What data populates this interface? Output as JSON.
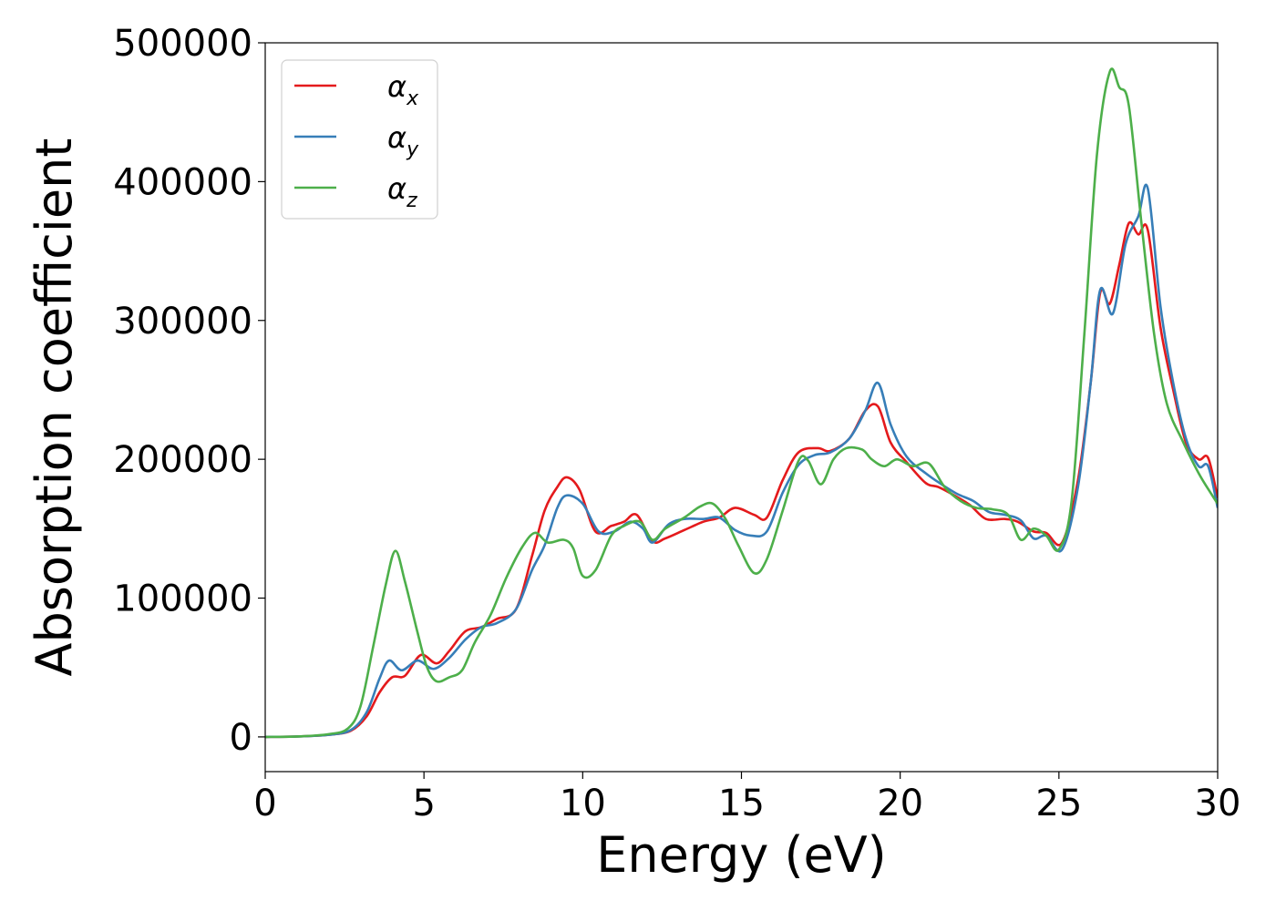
{
  "chart_data": {
    "type": "line",
    "title": "",
    "xlabel": "Energy (eV)",
    "ylabel": "Absorption coefficient",
    "xlim": [
      0,
      30
    ],
    "ylim": [
      -25000,
      500000
    ],
    "xticks": [
      0,
      5,
      10,
      15,
      20,
      25,
      30
    ],
    "yticks": [
      0,
      100000,
      200000,
      300000,
      400000,
      500000
    ],
    "xtick_labels": [
      "0",
      "5",
      "10",
      "15",
      "20",
      "25",
      "30"
    ],
    "ytick_labels": [
      "0",
      "100000",
      "200000",
      "300000",
      "400000",
      "500000"
    ],
    "grid": false,
    "legend_position": "top-left",
    "series": [
      {
        "name": "αx",
        "legend_base": "α",
        "legend_sub": "x",
        "color": "#e41a1c",
        "points": [
          [
            0,
            0
          ],
          [
            1,
            300
          ],
          [
            2,
            1500
          ],
          [
            2.7,
            4500
          ],
          [
            3.2,
            15000
          ],
          [
            3.6,
            32000
          ],
          [
            4,
            43000
          ],
          [
            4.4,
            44000
          ],
          [
            4.9,
            59000
          ],
          [
            5.4,
            53000
          ],
          [
            5.8,
            62000
          ],
          [
            6.3,
            76000
          ],
          [
            6.8,
            79000
          ],
          [
            7.3,
            85000
          ],
          [
            7.9,
            92000
          ],
          [
            8.4,
            130000
          ],
          [
            8.8,
            163000
          ],
          [
            9.2,
            180000
          ],
          [
            9.5,
            187000
          ],
          [
            9.9,
            178000
          ],
          [
            10.4,
            148000
          ],
          [
            10.9,
            152000
          ],
          [
            11.3,
            155000
          ],
          [
            11.7,
            160000
          ],
          [
            12.2,
            141000
          ],
          [
            12.6,
            143000
          ],
          [
            13.2,
            149000
          ],
          [
            13.8,
            155000
          ],
          [
            14.3,
            158000
          ],
          [
            14.8,
            165000
          ],
          [
            15.4,
            160000
          ],
          [
            15.8,
            158000
          ],
          [
            16.3,
            185000
          ],
          [
            16.8,
            205000
          ],
          [
            17.4,
            208000
          ],
          [
            17.8,
            206000
          ],
          [
            18.4,
            215000
          ],
          [
            18.9,
            235000
          ],
          [
            19.3,
            238000
          ],
          [
            19.7,
            212000
          ],
          [
            20.2,
            198000
          ],
          [
            20.8,
            183000
          ],
          [
            21.2,
            180000
          ],
          [
            21.7,
            174000
          ],
          [
            22.2,
            167000
          ],
          [
            22.7,
            157000
          ],
          [
            23.3,
            157000
          ],
          [
            23.7,
            155000
          ],
          [
            24.2,
            148000
          ],
          [
            24.6,
            147000
          ],
          [
            25.1,
            140000
          ],
          [
            25.6,
            185000
          ],
          [
            26,
            255000
          ],
          [
            26.3,
            320000
          ],
          [
            26.6,
            312000
          ],
          [
            26.9,
            340000
          ],
          [
            27.2,
            370000
          ],
          [
            27.5,
            362000
          ],
          [
            27.8,
            365000
          ],
          [
            28.2,
            295000
          ],
          [
            28.6,
            250000
          ],
          [
            29,
            212000
          ],
          [
            29.4,
            200000
          ],
          [
            29.7,
            201000
          ],
          [
            30,
            172000
          ]
        ]
      },
      {
        "name": "αy",
        "legend_base": "α",
        "legend_sub": "y",
        "color": "#377eb8",
        "points": [
          [
            0,
            0
          ],
          [
            1,
            300
          ],
          [
            2,
            1500
          ],
          [
            2.7,
            5000
          ],
          [
            3.2,
            18000
          ],
          [
            3.6,
            42000
          ],
          [
            3.9,
            55000
          ],
          [
            4.3,
            48000
          ],
          [
            4.8,
            55000
          ],
          [
            5.3,
            49000
          ],
          [
            5.8,
            57000
          ],
          [
            6.3,
            70000
          ],
          [
            6.8,
            79000
          ],
          [
            7.3,
            82000
          ],
          [
            7.9,
            92000
          ],
          [
            8.4,
            120000
          ],
          [
            8.8,
            138000
          ],
          [
            9.2,
            165000
          ],
          [
            9.5,
            174000
          ],
          [
            10,
            168000
          ],
          [
            10.5,
            148000
          ],
          [
            11,
            148000
          ],
          [
            11.5,
            155000
          ],
          [
            11.9,
            150000
          ],
          [
            12.2,
            140000
          ],
          [
            12.7,
            153000
          ],
          [
            13.2,
            157000
          ],
          [
            13.8,
            157000
          ],
          [
            14.3,
            158000
          ],
          [
            14.8,
            149000
          ],
          [
            15.3,
            145000
          ],
          [
            15.8,
            148000
          ],
          [
            16.3,
            176000
          ],
          [
            16.8,
            196000
          ],
          [
            17.3,
            203000
          ],
          [
            17.8,
            205000
          ],
          [
            18.4,
            215000
          ],
          [
            18.9,
            235000
          ],
          [
            19.3,
            255000
          ],
          [
            19.7,
            225000
          ],
          [
            20.2,
            202000
          ],
          [
            20.8,
            190000
          ],
          [
            21.3,
            182000
          ],
          [
            21.8,
            175000
          ],
          [
            22.3,
            170000
          ],
          [
            22.8,
            162000
          ],
          [
            23.3,
            160000
          ],
          [
            23.8,
            156000
          ],
          [
            24.2,
            143000
          ],
          [
            24.6,
            145000
          ],
          [
            25.1,
            135000
          ],
          [
            25.6,
            180000
          ],
          [
            26,
            255000
          ],
          [
            26.3,
            322000
          ],
          [
            26.7,
            305000
          ],
          [
            27.1,
            355000
          ],
          [
            27.5,
            375000
          ],
          [
            27.8,
            395000
          ],
          [
            28.2,
            310000
          ],
          [
            28.6,
            255000
          ],
          [
            29,
            215000
          ],
          [
            29.4,
            195000
          ],
          [
            29.7,
            195000
          ],
          [
            30,
            165000
          ]
        ]
      },
      {
        "name": "αz",
        "legend_base": "α",
        "legend_sub": "z",
        "color": "#4daf4a",
        "points": [
          [
            0,
            0
          ],
          [
            1,
            300
          ],
          [
            2,
            2000
          ],
          [
            2.6,
            6000
          ],
          [
            3,
            22000
          ],
          [
            3.4,
            65000
          ],
          [
            3.8,
            110000
          ],
          [
            4.1,
            134000
          ],
          [
            4.4,
            112000
          ],
          [
            4.8,
            75000
          ],
          [
            5.1,
            50000
          ],
          [
            5.4,
            40000
          ],
          [
            5.8,
            43000
          ],
          [
            6.2,
            48000
          ],
          [
            6.6,
            68000
          ],
          [
            7.1,
            88000
          ],
          [
            7.6,
            115000
          ],
          [
            8.1,
            137000
          ],
          [
            8.5,
            147000
          ],
          [
            8.9,
            140000
          ],
          [
            9.4,
            142000
          ],
          [
            9.7,
            136000
          ],
          [
            10,
            116000
          ],
          [
            10.4,
            120000
          ],
          [
            10.9,
            145000
          ],
          [
            11.3,
            152000
          ],
          [
            11.8,
            155000
          ],
          [
            12.2,
            142000
          ],
          [
            12.6,
            150000
          ],
          [
            13.2,
            158000
          ],
          [
            13.7,
            166000
          ],
          [
            14.1,
            168000
          ],
          [
            14.5,
            157000
          ],
          [
            14.9,
            138000
          ],
          [
            15.4,
            118000
          ],
          [
            15.8,
            128000
          ],
          [
            16.3,
            163000
          ],
          [
            16.8,
            199000
          ],
          [
            17.1,
            199000
          ],
          [
            17.5,
            182000
          ],
          [
            17.9,
            200000
          ],
          [
            18.3,
            208000
          ],
          [
            18.8,
            207000
          ],
          [
            19.1,
            200000
          ],
          [
            19.5,
            195000
          ],
          [
            19.9,
            200000
          ],
          [
            20.4,
            195000
          ],
          [
            20.9,
            197000
          ],
          [
            21.4,
            180000
          ],
          [
            21.9,
            170000
          ],
          [
            22.4,
            165000
          ],
          [
            22.9,
            164000
          ],
          [
            23.4,
            160000
          ],
          [
            23.8,
            142000
          ],
          [
            24.2,
            150000
          ],
          [
            24.6,
            145000
          ],
          [
            25,
            135000
          ],
          [
            25.4,
            170000
          ],
          [
            25.8,
            290000
          ],
          [
            26.2,
            420000
          ],
          [
            26.6,
            479000
          ],
          [
            26.9,
            468000
          ],
          [
            27.2,
            455000
          ],
          [
            27.6,
            370000
          ],
          [
            28,
            290000
          ],
          [
            28.4,
            240000
          ],
          [
            28.9,
            213000
          ],
          [
            29.4,
            190000
          ],
          [
            29.8,
            175000
          ],
          [
            30,
            168000
          ]
        ]
      }
    ]
  }
}
